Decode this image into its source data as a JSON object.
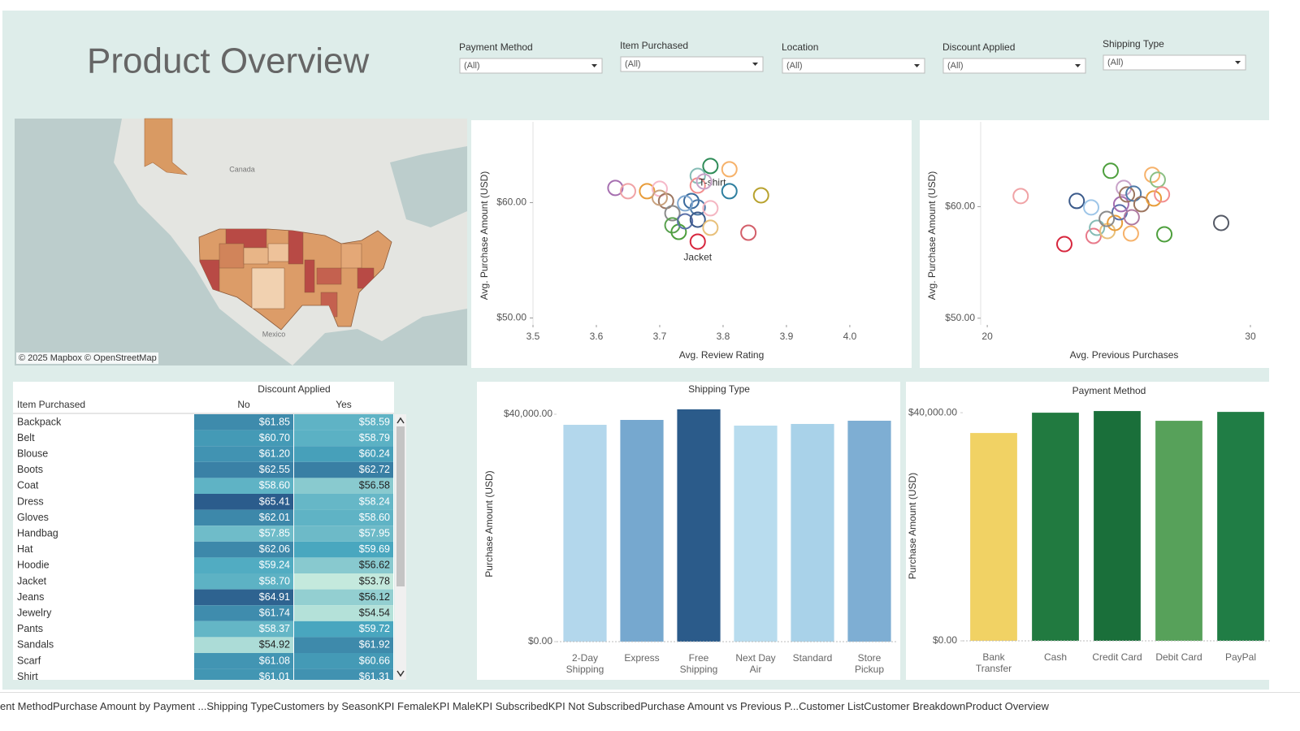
{
  "title": "Product Overview",
  "filters": [
    {
      "label": "Payment Method",
      "value": "(All)"
    },
    {
      "label": "Item Purchased",
      "value": "(All)"
    },
    {
      "label": "Location",
      "value": "(All)"
    },
    {
      "label": "Discount Applied",
      "value": "(All)"
    },
    {
      "label": "Shipping Type",
      "value": "(All)"
    }
  ],
  "map": {
    "labels": [
      "Canada",
      "Mexico"
    ],
    "attribution": "© 2025 Mapbox © OpenStreetMap"
  },
  "table": {
    "column_header": "Discount Applied",
    "row_header": "Item Purchased",
    "columns": [
      "No",
      "Yes"
    ],
    "rows": [
      {
        "item": "Backpack",
        "values": [
          61.85,
          58.59
        ],
        "value_labels": [
          "$61.85",
          "$58.59"
        ]
      },
      {
        "item": "Belt",
        "values": [
          60.7,
          58.79
        ],
        "value_labels": [
          "$60.70",
          "$58.79"
        ]
      },
      {
        "item": "Blouse",
        "values": [
          61.2,
          60.24
        ],
        "value_labels": [
          "$61.20",
          "$60.24"
        ]
      },
      {
        "item": "Boots",
        "values": [
          62.55,
          62.72
        ],
        "value_labels": [
          "$62.55",
          "$62.72"
        ]
      },
      {
        "item": "Coat",
        "values": [
          58.6,
          56.58
        ],
        "value_labels": [
          "$58.60",
          "$56.58"
        ]
      },
      {
        "item": "Dress",
        "values": [
          65.41,
          58.24
        ],
        "value_labels": [
          "$65.41",
          "$58.24"
        ]
      },
      {
        "item": "Gloves",
        "values": [
          62.01,
          58.6
        ],
        "value_labels": [
          "$62.01",
          "$58.60"
        ]
      },
      {
        "item": "Handbag",
        "values": [
          57.85,
          57.95
        ],
        "value_labels": [
          "$57.85",
          "$57.95"
        ]
      },
      {
        "item": "Hat",
        "values": [
          62.06,
          59.69
        ],
        "value_labels": [
          "$62.06",
          "$59.69"
        ]
      },
      {
        "item": "Hoodie",
        "values": [
          59.24,
          56.62
        ],
        "value_labels": [
          "$59.24",
          "$56.62"
        ]
      },
      {
        "item": "Jacket",
        "values": [
          58.7,
          53.78
        ],
        "value_labels": [
          "$58.70",
          "$53.78"
        ]
      },
      {
        "item": "Jeans",
        "values": [
          64.91,
          56.12
        ],
        "value_labels": [
          "$64.91",
          "$56.12"
        ]
      },
      {
        "item": "Jewelry",
        "values": [
          61.74,
          54.54
        ],
        "value_labels": [
          "$61.74",
          "$54.54"
        ]
      },
      {
        "item": "Pants",
        "values": [
          58.37,
          59.72
        ],
        "value_labels": [
          "$58.37",
          "$59.72"
        ]
      },
      {
        "item": "Sandals",
        "values": [
          54.92,
          61.92
        ],
        "value_labels": [
          "$54.92",
          "$61.92"
        ]
      },
      {
        "item": "Scarf",
        "values": [
          61.08,
          60.66
        ],
        "value_labels": [
          "$61.08",
          "$60.66"
        ]
      },
      {
        "item": "Shirt",
        "values": [
          61.01,
          61.31
        ],
        "value_labels": [
          "$61.01",
          "$61.31"
        ]
      }
    ]
  },
  "chart_data": [
    {
      "type": "scatter",
      "x_label": "Avg. Review Rating",
      "y_label": "Avg. Purchase Amount (USD)",
      "x": [
        3.63,
        3.65,
        3.68,
        3.7,
        3.71,
        3.72,
        3.72,
        3.73,
        3.74,
        3.75,
        3.76,
        3.76,
        3.76,
        3.76,
        3.76,
        3.78,
        3.81,
        3.81,
        3.78,
        3.78,
        3.86,
        3.84,
        3.74,
        3.77,
        3.7
      ],
      "y": [
        61.27,
        60.99,
        60.99,
        61.2,
        60.14,
        59.08,
        58.03,
        57.46,
        58.38,
        60.14,
        62.32,
        61.48,
        59.58,
        58.52,
        56.62,
        63.17,
        62.89,
        60.99,
        59.51,
        57.82,
        60.63,
        57.39,
        59.93,
        61.83,
        60.42
      ],
      "point_labels": [
        null,
        null,
        null,
        null,
        null,
        null,
        null,
        null,
        null,
        null,
        null,
        "T-shirt",
        null,
        null,
        "Jacket",
        null,
        null,
        null,
        null,
        null,
        null,
        null,
        null,
        null,
        null
      ],
      "colors": [
        "#a66fb0",
        "#f0a3a6",
        "#e89d3b",
        "#f5b8c8",
        "#9d7660",
        "#8b8b8b",
        "#59a14f",
        "#4e9f3d",
        "#5a6fa8",
        "#3a6a9c",
        "#86bcb6",
        "#f28e8e",
        "#4e79a7",
        "#3b5a8a",
        "#d7263d",
        "#2e8b57",
        "#f6b26b",
        "#2f7f9f",
        "#f4b6c2",
        "#e8c07a",
        "#b8a22e",
        "#d35f6a",
        "#7fa7d0",
        "#c8a2c8",
        "#c9a27e"
      ],
      "xlim": [
        3.5,
        4.095
      ],
      "ylim": [
        49.4,
        67
      ],
      "xticks": [
        3.5,
        3.6,
        3.7,
        3.8,
        3.9,
        {
          "value": 4,
          "label": "4.0"
        }
      ],
      "yticks": [
        {
          "value": 50,
          "label": "$50.00"
        },
        {
          "value": 60,
          "label": "$60.00"
        }
      ]
    },
    {
      "type": "scatter",
      "x_label": "Avg. Previous Purchases",
      "y_label": "Avg. Purchase Amount (USD)",
      "x": [
        21.27,
        22.93,
        23.4,
        23.95,
        24.04,
        24.17,
        24.57,
        24.69,
        24.85,
        25.03,
        25.09,
        25.19,
        25.31,
        25.46,
        25.56,
        25.86,
        26.27,
        26.33,
        26.48,
        26.64,
        26.73,
        28.89,
        24.54,
        25.49
      ],
      "y": [
        60.95,
        56.64,
        60.51,
        59.93,
        57.37,
        58.1,
        57.81,
        63.21,
        58.54,
        59.49,
        60.22,
        61.68,
        61.09,
        57.59,
        61.17,
        60.22,
        62.85,
        60.73,
        62.41,
        61.09,
        57.52,
        58.54,
        58.9,
        59.05
      ],
      "colors": [
        "#f0a3a6",
        "#d7263d",
        "#3b5a8a",
        "#9ec6e8",
        "#e87a8a",
        "#86bcb6",
        "#e8c07a",
        "#4e9f3d",
        "#e89d3b",
        "#5a6fa8",
        "#a66fb0",
        "#c8a2c8",
        "#9d7660",
        "#f6b26b",
        "#4e79a7",
        "#9d7660",
        "#f6b26b",
        "#e89d3b",
        "#8cc084",
        "#f28e8e",
        "#4e9f3d",
        "#555a66",
        "#8b8b8b",
        "#b07aa1"
      ],
      "xlim": [
        19.75,
        30.65
      ],
      "ylim": [
        49.4,
        67.6
      ],
      "xticks": [
        20,
        30
      ],
      "yticks": [
        {
          "value": 50,
          "label": "$50.00"
        },
        {
          "value": 60,
          "label": "$60.00"
        }
      ]
    },
    {
      "type": "bar",
      "title": "Shipping Type",
      "y_label": "Purchase Amount (USD)",
      "categories": [
        "2-Day Shipping",
        "Express",
        "Free Shipping",
        "Next Day Air",
        "Standard",
        "Store Pickup"
      ],
      "values": [
        38140,
        39000,
        40860,
        38000,
        38290,
        38860
      ],
      "colors": [
        "#b3d7ec",
        "#76a8cf",
        "#2b5b8a",
        "#b8dcee",
        "#a9d2e9",
        "#7eaed3"
      ],
      "ylim": [
        0,
        41430
      ],
      "yticks": [
        {
          "value": 0,
          "label": "$0.00"
        },
        {
          "value": 40000,
          "label": "$40,000.00"
        }
      ]
    },
    {
      "type": "bar",
      "title": "Payment Method",
      "y_label": "Purchase Amount (USD)",
      "categories": [
        "Bank Transfer",
        "Cash",
        "Credit Card",
        "Debit Card",
        "PayPal"
      ],
      "values": [
        36440,
        40000,
        40290,
        38580,
        40140
      ],
      "colors": [
        "#f1d264",
        "#217a40",
        "#1a6f3a",
        "#57a15a",
        "#207d45"
      ],
      "ylim": [
        0,
        40300
      ],
      "yticks": [
        {
          "value": 0,
          "label": "$0.00"
        },
        {
          "value": 40000,
          "label": "$40,000.00"
        }
      ]
    }
  ],
  "tabs": [
    "ent Method",
    "Purchase Amount by Payment ...",
    "Shipping Type",
    "Customers by Season",
    "KPI Female",
    "KPI Male",
    "KPI Subscribed",
    "KPI Not Subscribed",
    "Purchase Amount vs Previous P...",
    "Customer List",
    "Customer Breakdown",
    "Product Overview"
  ],
  "active_tab": 11
}
